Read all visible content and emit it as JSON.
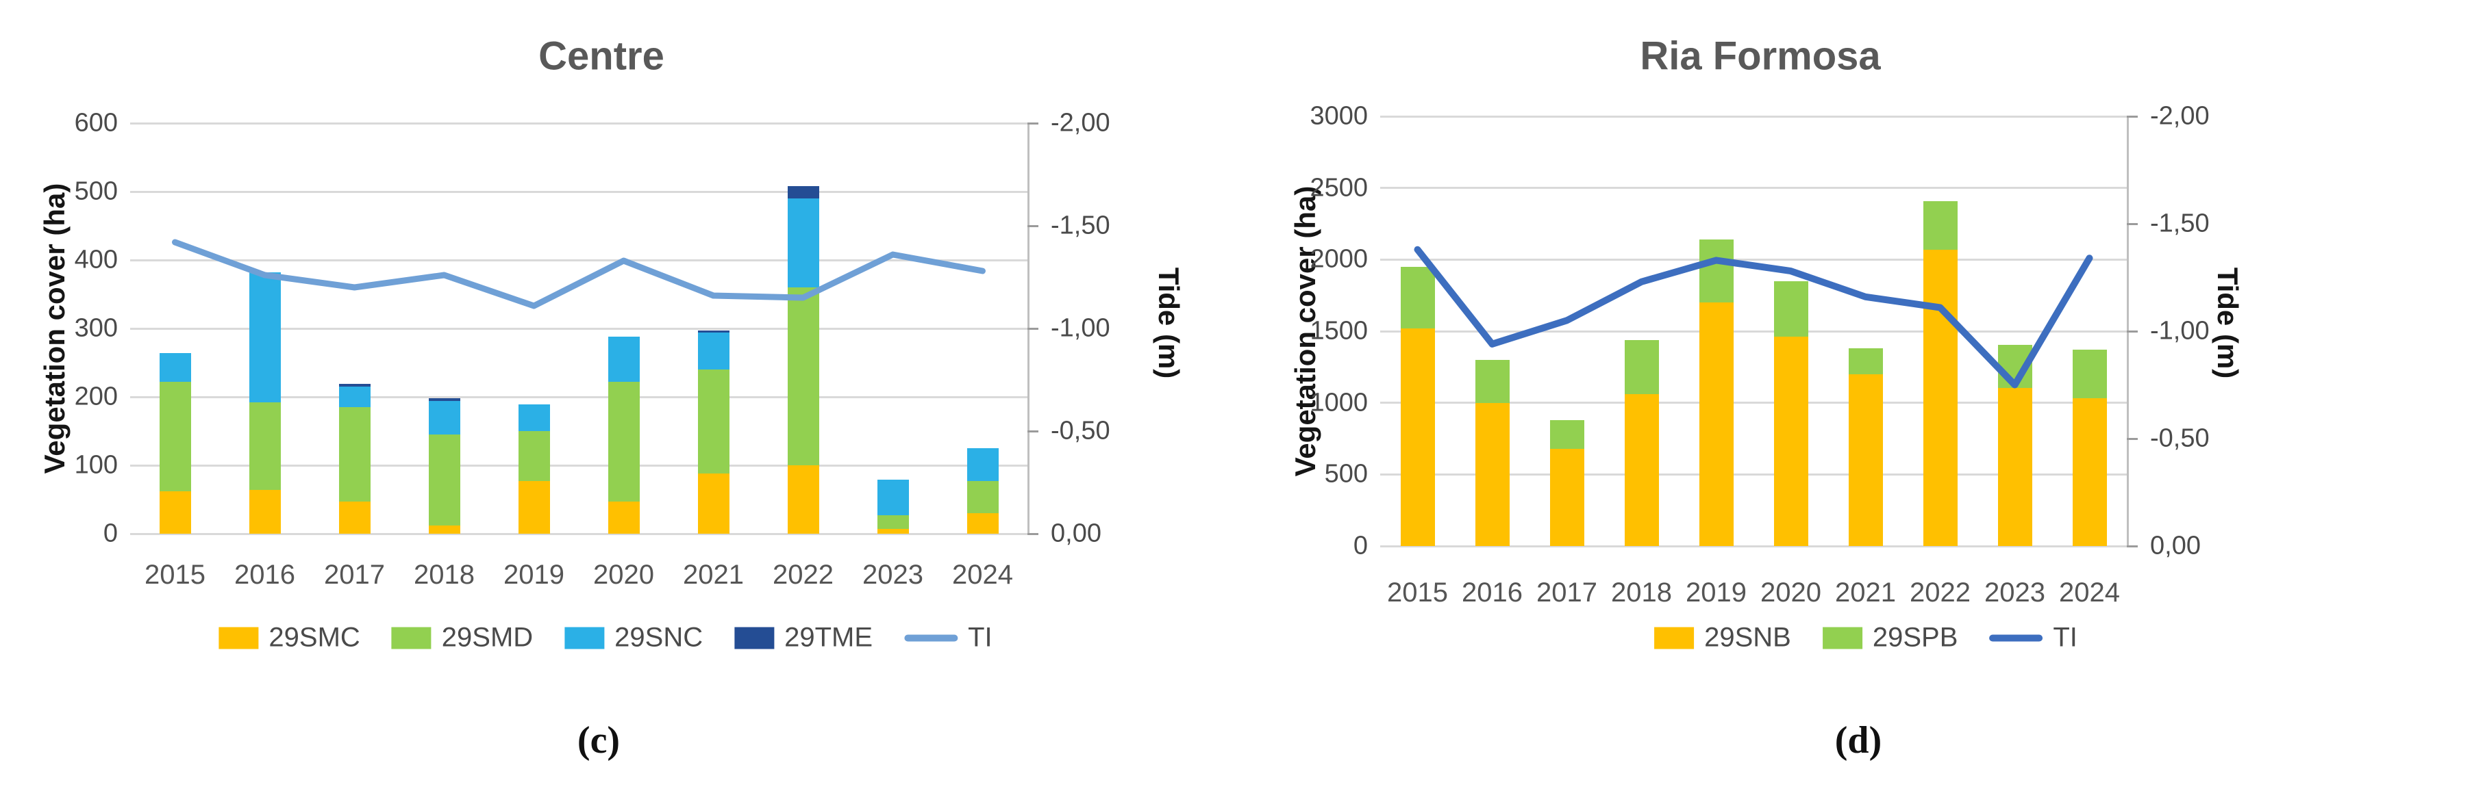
{
  "style": {
    "background": "#ffffff",
    "gridline_color": "#d9d9d9",
    "axis_line_color": "#bfbfbf",
    "tick_mark_color": "#9b9b9b",
    "title_color": "#595959",
    "tick_label_color": "#4a4a4a"
  },
  "chart_data": [
    {
      "type": "combo-stacked-bar-line",
      "title": "Centre",
      "caption": "(c)",
      "ylabel": "Vegetation cover (ha)",
      "y2label": "Tide (m)",
      "ylim": [
        0,
        600
      ],
      "y2lim": [
        0,
        -2
      ],
      "grid": true,
      "legend_position": "bottom",
      "categories": [
        "2015",
        "2016",
        "2017",
        "2018",
        "2019",
        "2020",
        "2021",
        "2022",
        "2023",
        "2024"
      ],
      "yticks": [
        600,
        500,
        400,
        300,
        200,
        100,
        0
      ],
      "y2ticks": [
        "-2,00",
        "-1,50",
        "-1,00",
        "-0,50",
        "0,00"
      ],
      "y2tick_values": [
        -2.0,
        -1.5,
        -1.0,
        -0.5,
        0.0
      ],
      "series": [
        {
          "name": "29SMC",
          "type": "bar",
          "color": "#FFC000",
          "values": [
            62,
            64,
            47,
            12,
            77,
            47,
            88,
            100,
            7,
            30
          ]
        },
        {
          "name": "29SMD",
          "type": "bar",
          "color": "#92D050",
          "values": [
            160,
            128,
            138,
            133,
            73,
            175,
            152,
            260,
            20,
            47
          ]
        },
        {
          "name": "29SNC",
          "type": "bar",
          "color": "#2BB0E6",
          "values": [
            42,
            190,
            30,
            49,
            39,
            66,
            54,
            130,
            52,
            48
          ]
        },
        {
          "name": "29TME",
          "type": "bar",
          "color": "#244D94",
          "values": [
            0,
            0,
            4,
            4,
            0,
            0,
            3,
            18,
            0,
            0
          ]
        },
        {
          "name": "TI",
          "type": "line",
          "axis": "y2",
          "color": "#6FA0D6",
          "values": [
            -1.42,
            -1.26,
            -1.2,
            -1.26,
            -1.11,
            -1.33,
            -1.16,
            -1.15,
            -1.36,
            -1.28
          ]
        }
      ]
    },
    {
      "type": "combo-stacked-bar-line",
      "title": "Ria Formosa",
      "caption": "(d)",
      "ylabel": "Vegetation cover (ha)",
      "y2label": "Tide (m)",
      "ylim": [
        0,
        3000
      ],
      "y2lim": [
        0,
        -2
      ],
      "grid": true,
      "legend_position": "bottom",
      "categories": [
        "2015",
        "2016",
        "2017",
        "2018",
        "2019",
        "2020",
        "2021",
        "2022",
        "2023",
        "2024"
      ],
      "yticks": [
        3000,
        2500,
        2000,
        1500,
        1000,
        500,
        0
      ],
      "y2ticks": [
        "-2,00",
        "-1,50",
        "-1,00",
        "-0,50",
        "0,00"
      ],
      "y2tick_values": [
        -2.0,
        -1.5,
        -1.0,
        -0.5,
        0.0
      ],
      "series": [
        {
          "name": "29SNB",
          "type": "bar",
          "color": "#FFC000",
          "values": [
            1520,
            1000,
            680,
            1060,
            1700,
            1460,
            1200,
            2070,
            1105,
            1030
          ]
        },
        {
          "name": "29SPB",
          "type": "bar",
          "color": "#92D050",
          "values": [
            430,
            300,
            200,
            380,
            440,
            390,
            180,
            340,
            300,
            340
          ]
        },
        {
          "name": "TI",
          "type": "line",
          "axis": "y2",
          "color": "#3D6EBF",
          "values": [
            -1.38,
            -0.94,
            -1.05,
            -1.23,
            -1.33,
            -1.28,
            -1.16,
            -1.11,
            -0.75,
            -1.34
          ]
        }
      ]
    }
  ]
}
